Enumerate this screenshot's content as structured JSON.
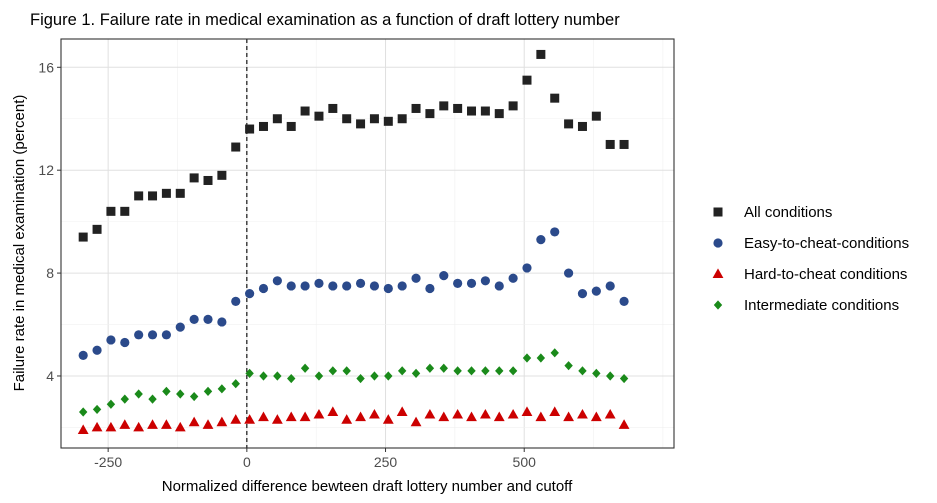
{
  "chart_data": {
    "type": "scatter",
    "title": "Figure 1. Failure rate in medical examination as a function of draft lottery number",
    "xlabel": "Normalized difference bewteen draft lottery number and cutoff",
    "ylabel": "Failure rate in medical examination (percent)",
    "xlim": [
      -335,
      770
    ],
    "ylim": [
      1.2,
      17.1
    ],
    "x_ticks": [
      -250,
      0,
      250,
      500
    ],
    "y_ticks": [
      4,
      8,
      12,
      16
    ],
    "x_tick_labels": [
      "-250",
      "0",
      "250",
      "500"
    ],
    "y_tick_labels": [
      "4",
      "8",
      "12",
      "16"
    ],
    "grid": true,
    "legend_position": "right",
    "cutoff_line": {
      "x": 0,
      "style": "dashed"
    },
    "x": [
      -295,
      -270,
      -245,
      -220,
      -195,
      -170,
      -145,
      -120,
      -95,
      -70,
      -45,
      -20,
      5,
      30,
      55,
      80,
      105,
      130,
      155,
      180,
      205,
      230,
      255,
      280,
      305,
      330,
      355,
      380,
      405,
      430,
      455,
      480,
      505,
      530,
      555,
      580,
      605,
      630,
      655,
      680
    ],
    "series": [
      {
        "name": "All conditions",
        "shape": "square",
        "color": "#222222",
        "values": [
          9.4,
          9.7,
          10.4,
          10.4,
          11.0,
          11.0,
          11.1,
          11.1,
          11.7,
          11.6,
          11.8,
          12.9,
          13.6,
          13.7,
          14.0,
          13.7,
          14.3,
          14.1,
          14.4,
          14.0,
          13.8,
          14.0,
          13.9,
          14.0,
          14.4,
          14.2,
          14.5,
          14.4,
          14.3,
          14.3,
          14.2,
          14.5,
          15.5,
          16.5,
          14.8,
          13.8,
          13.7,
          14.1,
          13.0,
          13.0
        ]
      },
      {
        "name": "Easy-to-cheat-conditions",
        "shape": "circle",
        "color": "#2b4a8b",
        "values": [
          4.8,
          5.0,
          5.4,
          5.3,
          5.6,
          5.6,
          5.6,
          5.9,
          6.2,
          6.2,
          6.1,
          6.9,
          7.2,
          7.4,
          7.7,
          7.5,
          7.5,
          7.6,
          7.5,
          7.5,
          7.6,
          7.5,
          7.4,
          7.5,
          7.8,
          7.4,
          7.9,
          7.6,
          7.6,
          7.7,
          7.5,
          7.8,
          8.2,
          9.3,
          9.6,
          8.0,
          7.2,
          7.3,
          7.5,
          6.9
        ]
      },
      {
        "name": "Hard-to-cheat conditions",
        "shape": "triangle",
        "color": "#cc0000",
        "values": [
          1.9,
          2.0,
          2.0,
          2.1,
          2.0,
          2.1,
          2.1,
          2.0,
          2.2,
          2.1,
          2.2,
          2.3,
          2.3,
          2.4,
          2.3,
          2.4,
          2.4,
          2.5,
          2.6,
          2.3,
          2.4,
          2.5,
          2.3,
          2.6,
          2.2,
          2.5,
          2.4,
          2.5,
          2.4,
          2.5,
          2.4,
          2.5,
          2.6,
          2.4,
          2.6,
          2.4,
          2.5,
          2.4,
          2.5,
          2.1
        ]
      },
      {
        "name": "Intermediate conditions",
        "shape": "diamond",
        "color": "#1a8a1a",
        "values": [
          2.6,
          2.7,
          2.9,
          3.1,
          3.3,
          3.1,
          3.4,
          3.3,
          3.2,
          3.4,
          3.5,
          3.7,
          4.1,
          4.0,
          4.0,
          3.9,
          4.3,
          4.0,
          4.2,
          4.2,
          3.9,
          4.0,
          4.0,
          4.2,
          4.1,
          4.3,
          4.3,
          4.2,
          4.2,
          4.2,
          4.2,
          4.2,
          4.7,
          4.7,
          4.9,
          4.4,
          4.2,
          4.1,
          4.0,
          3.9
        ]
      }
    ]
  }
}
